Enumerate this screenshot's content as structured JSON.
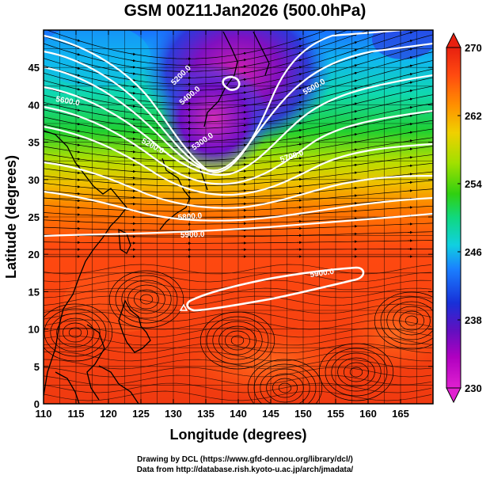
{
  "title": "GSM 00Z11Jan2026 (500.0hPa)",
  "axes": {
    "xlabel": "Longitude (degrees)",
    "ylabel": "Latitude  (degrees)",
    "x_ticks": [
      "110",
      "115",
      "120",
      "125",
      "130",
      "135",
      "140",
      "145",
      "150",
      "155",
      "160",
      "165"
    ],
    "y_ticks": [
      "0",
      "5",
      "10",
      "15",
      "20",
      "25",
      "30",
      "35",
      "40",
      "45"
    ],
    "x_range": [
      110,
      170
    ],
    "y_range": [
      0,
      50
    ]
  },
  "colorbar": {
    "ticks": [
      "230",
      "238",
      "246",
      "254",
      "262",
      "270"
    ],
    "range": [
      230,
      270
    ],
    "colors": [
      "#e020d0",
      "#b000c0",
      "#6010c0",
      "#1830d8",
      "#1a80ff",
      "#10d0e0",
      "#10d880",
      "#30d010",
      "#a0e000",
      "#f0d000",
      "#ff9000",
      "#ff4a10",
      "#e82010"
    ]
  },
  "contour_labels": [
    "5200.0",
    "5300.0",
    "5400.0",
    "5500.0",
    "5600.0",
    "5700.0",
    "5800.0",
    "5900.0",
    "5200.0",
    "5900.0"
  ],
  "credits": {
    "line1": "Drawing by DCL (https://www.gfd-dennou.org/library/dcl/)",
    "line2": "Data from http://database.rish.kyoto-u.ac.jp/arch/jmadata/"
  }
}
